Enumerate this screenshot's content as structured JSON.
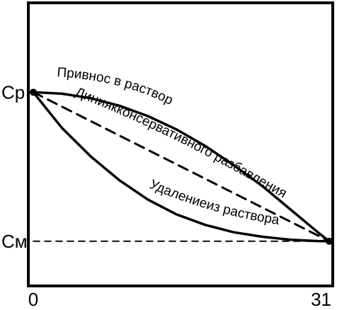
{
  "chart_data": {
    "type": "line",
    "x_ticks": [
      "0",
      "31"
    ],
    "y_ticks": [
      {
        "label": "Cp",
        "value": 1.0
      },
      {
        "label": "Cм",
        "value": 0.0
      }
    ],
    "xlim": [
      0,
      31
    ],
    "ylim": [
      -0.3,
      1.6
    ],
    "grid": false,
    "legend": "none",
    "series": [
      {
        "name": "Привнос в раствор",
        "style": "solid",
        "x": [
          0,
          3,
          6,
          9,
          12,
          15,
          18,
          21,
          24,
          27,
          30,
          31
        ],
        "y": [
          1.0,
          0.99,
          0.96,
          0.91,
          0.84,
          0.75,
          0.64,
          0.51,
          0.37,
          0.21,
          0.05,
          0.0
        ]
      },
      {
        "name": "Диниякконсервативного разбавления",
        "style": "dashed",
        "x": [
          0,
          31
        ],
        "y": [
          1.0,
          0.0
        ]
      },
      {
        "name": "Удалениеиз раствора",
        "style": "solid",
        "x": [
          0,
          3,
          6,
          9,
          12,
          15,
          18,
          21,
          24,
          27,
          30,
          31
        ],
        "y": [
          1.0,
          0.76,
          0.57,
          0.41,
          0.28,
          0.18,
          0.11,
          0.06,
          0.03,
          0.01,
          0.0,
          0.0
        ]
      },
      {
        "name": "",
        "style": "dashed",
        "x": [
          0,
          31
        ],
        "y": [
          0.0,
          0.0
        ]
      }
    ],
    "colors": {
      "line": "#000000",
      "background": "#ffffff"
    }
  }
}
